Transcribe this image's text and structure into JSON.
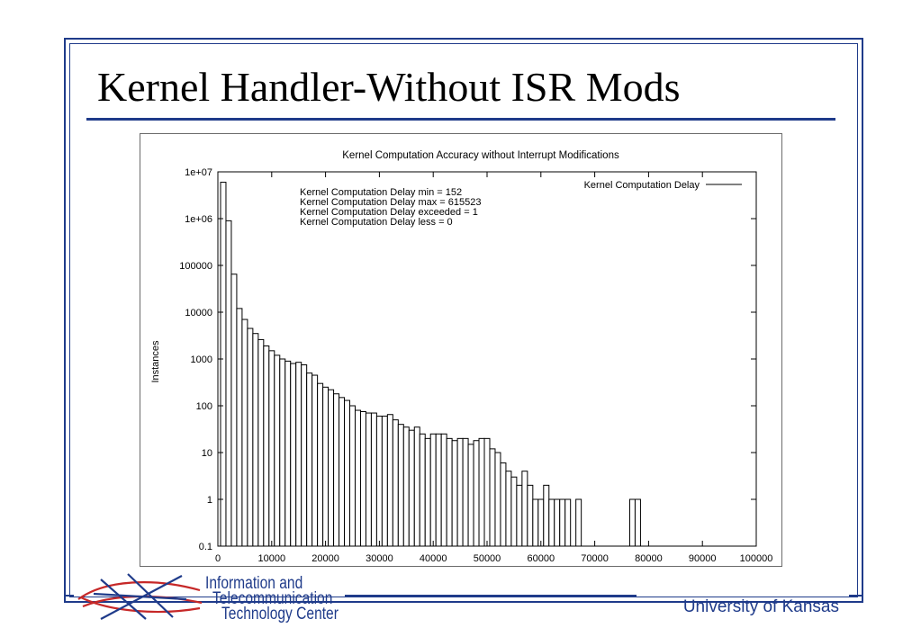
{
  "slide": {
    "title": "Kernel Handler-Without ISR Mods",
    "footer_org_line1": "Information and",
    "footer_org_line2": "Telecommunication",
    "footer_org_line3": "Technology Center",
    "footer_university": "University of Kansas"
  },
  "colors": {
    "frame": "#1f3b8a",
    "logo_red": "#c62828",
    "logo_blue": "#1f3b8a",
    "bars": "#000000"
  },
  "chart_data": {
    "type": "bar",
    "title": "Kernel Computation Accuracy without Interrupt Modifications",
    "xlabel": "",
    "ylabel": "Instances",
    "xlim": [
      0,
      100000
    ],
    "ylim": [
      0.1,
      10000000
    ],
    "y_scale": "log",
    "grid": false,
    "legend_position": "top-right",
    "legend": [
      "Kernel Computation Delay"
    ],
    "x_tick_labels": [
      "0",
      "10000",
      "20000",
      "30000",
      "40000",
      "50000",
      "60000",
      "70000",
      "80000",
      "90000",
      "100000"
    ],
    "y_tick_labels": [
      "1e+07",
      "1e+06",
      "100000",
      "10000",
      "1000",
      "100",
      "10",
      "1",
      "0.1"
    ],
    "annotations": [
      "Kernel Computation Delay min = 152",
      "Kernel Computation Delay max = 615523",
      "Kernel Computation Delay exceeded = 1",
      "Kernel Computation Delay less = 0"
    ],
    "bin_width": 1000,
    "bins": [
      {
        "x": 1000,
        "y": 6000000
      },
      {
        "x": 2000,
        "y": 900000
      },
      {
        "x": 3000,
        "y": 65000
      },
      {
        "x": 4000,
        "y": 12000
      },
      {
        "x": 5000,
        "y": 7000
      },
      {
        "x": 6000,
        "y": 4500
      },
      {
        "x": 7000,
        "y": 3500
      },
      {
        "x": 8000,
        "y": 2600
      },
      {
        "x": 9000,
        "y": 1900
      },
      {
        "x": 10000,
        "y": 1500
      },
      {
        "x": 11000,
        "y": 1200
      },
      {
        "x": 12000,
        "y": 1000
      },
      {
        "x": 13000,
        "y": 900
      },
      {
        "x": 14000,
        "y": 800
      },
      {
        "x": 15000,
        "y": 850
      },
      {
        "x": 16000,
        "y": 750
      },
      {
        "x": 17000,
        "y": 500
      },
      {
        "x": 18000,
        "y": 450
      },
      {
        "x": 19000,
        "y": 300
      },
      {
        "x": 20000,
        "y": 250
      },
      {
        "x": 21000,
        "y": 220
      },
      {
        "x": 22000,
        "y": 180
      },
      {
        "x": 23000,
        "y": 150
      },
      {
        "x": 24000,
        "y": 130
      },
      {
        "x": 25000,
        "y": 100
      },
      {
        "x": 26000,
        "y": 80
      },
      {
        "x": 27000,
        "y": 75
      },
      {
        "x": 28000,
        "y": 70
      },
      {
        "x": 29000,
        "y": 70
      },
      {
        "x": 30000,
        "y": 60
      },
      {
        "x": 31000,
        "y": 60
      },
      {
        "x": 32000,
        "y": 65
      },
      {
        "x": 33000,
        "y": 50
      },
      {
        "x": 34000,
        "y": 40
      },
      {
        "x": 35000,
        "y": 35
      },
      {
        "x": 36000,
        "y": 30
      },
      {
        "x": 37000,
        "y": 35
      },
      {
        "x": 38000,
        "y": 25
      },
      {
        "x": 39000,
        "y": 20
      },
      {
        "x": 40000,
        "y": 25
      },
      {
        "x": 41000,
        "y": 25
      },
      {
        "x": 42000,
        "y": 25
      },
      {
        "x": 43000,
        "y": 20
      },
      {
        "x": 44000,
        "y": 18
      },
      {
        "x": 45000,
        "y": 20
      },
      {
        "x": 46000,
        "y": 20
      },
      {
        "x": 47000,
        "y": 15
      },
      {
        "x": 48000,
        "y": 18
      },
      {
        "x": 49000,
        "y": 20
      },
      {
        "x": 50000,
        "y": 20
      },
      {
        "x": 51000,
        "y": 12
      },
      {
        "x": 52000,
        "y": 10
      },
      {
        "x": 53000,
        "y": 6
      },
      {
        "x": 54000,
        "y": 4
      },
      {
        "x": 55000,
        "y": 3
      },
      {
        "x": 56000,
        "y": 2
      },
      {
        "x": 57000,
        "y": 4
      },
      {
        "x": 58000,
        "y": 2
      },
      {
        "x": 59000,
        "y": 1
      },
      {
        "x": 60000,
        "y": 1
      },
      {
        "x": 61000,
        "y": 2
      },
      {
        "x": 62000,
        "y": 1
      },
      {
        "x": 63000,
        "y": 1
      },
      {
        "x": 64000,
        "y": 1
      },
      {
        "x": 65000,
        "y": 1
      },
      {
        "x": 67000,
        "y": 1
      },
      {
        "x": 77000,
        "y": 1
      },
      {
        "x": 78000,
        "y": 1
      }
    ]
  }
}
